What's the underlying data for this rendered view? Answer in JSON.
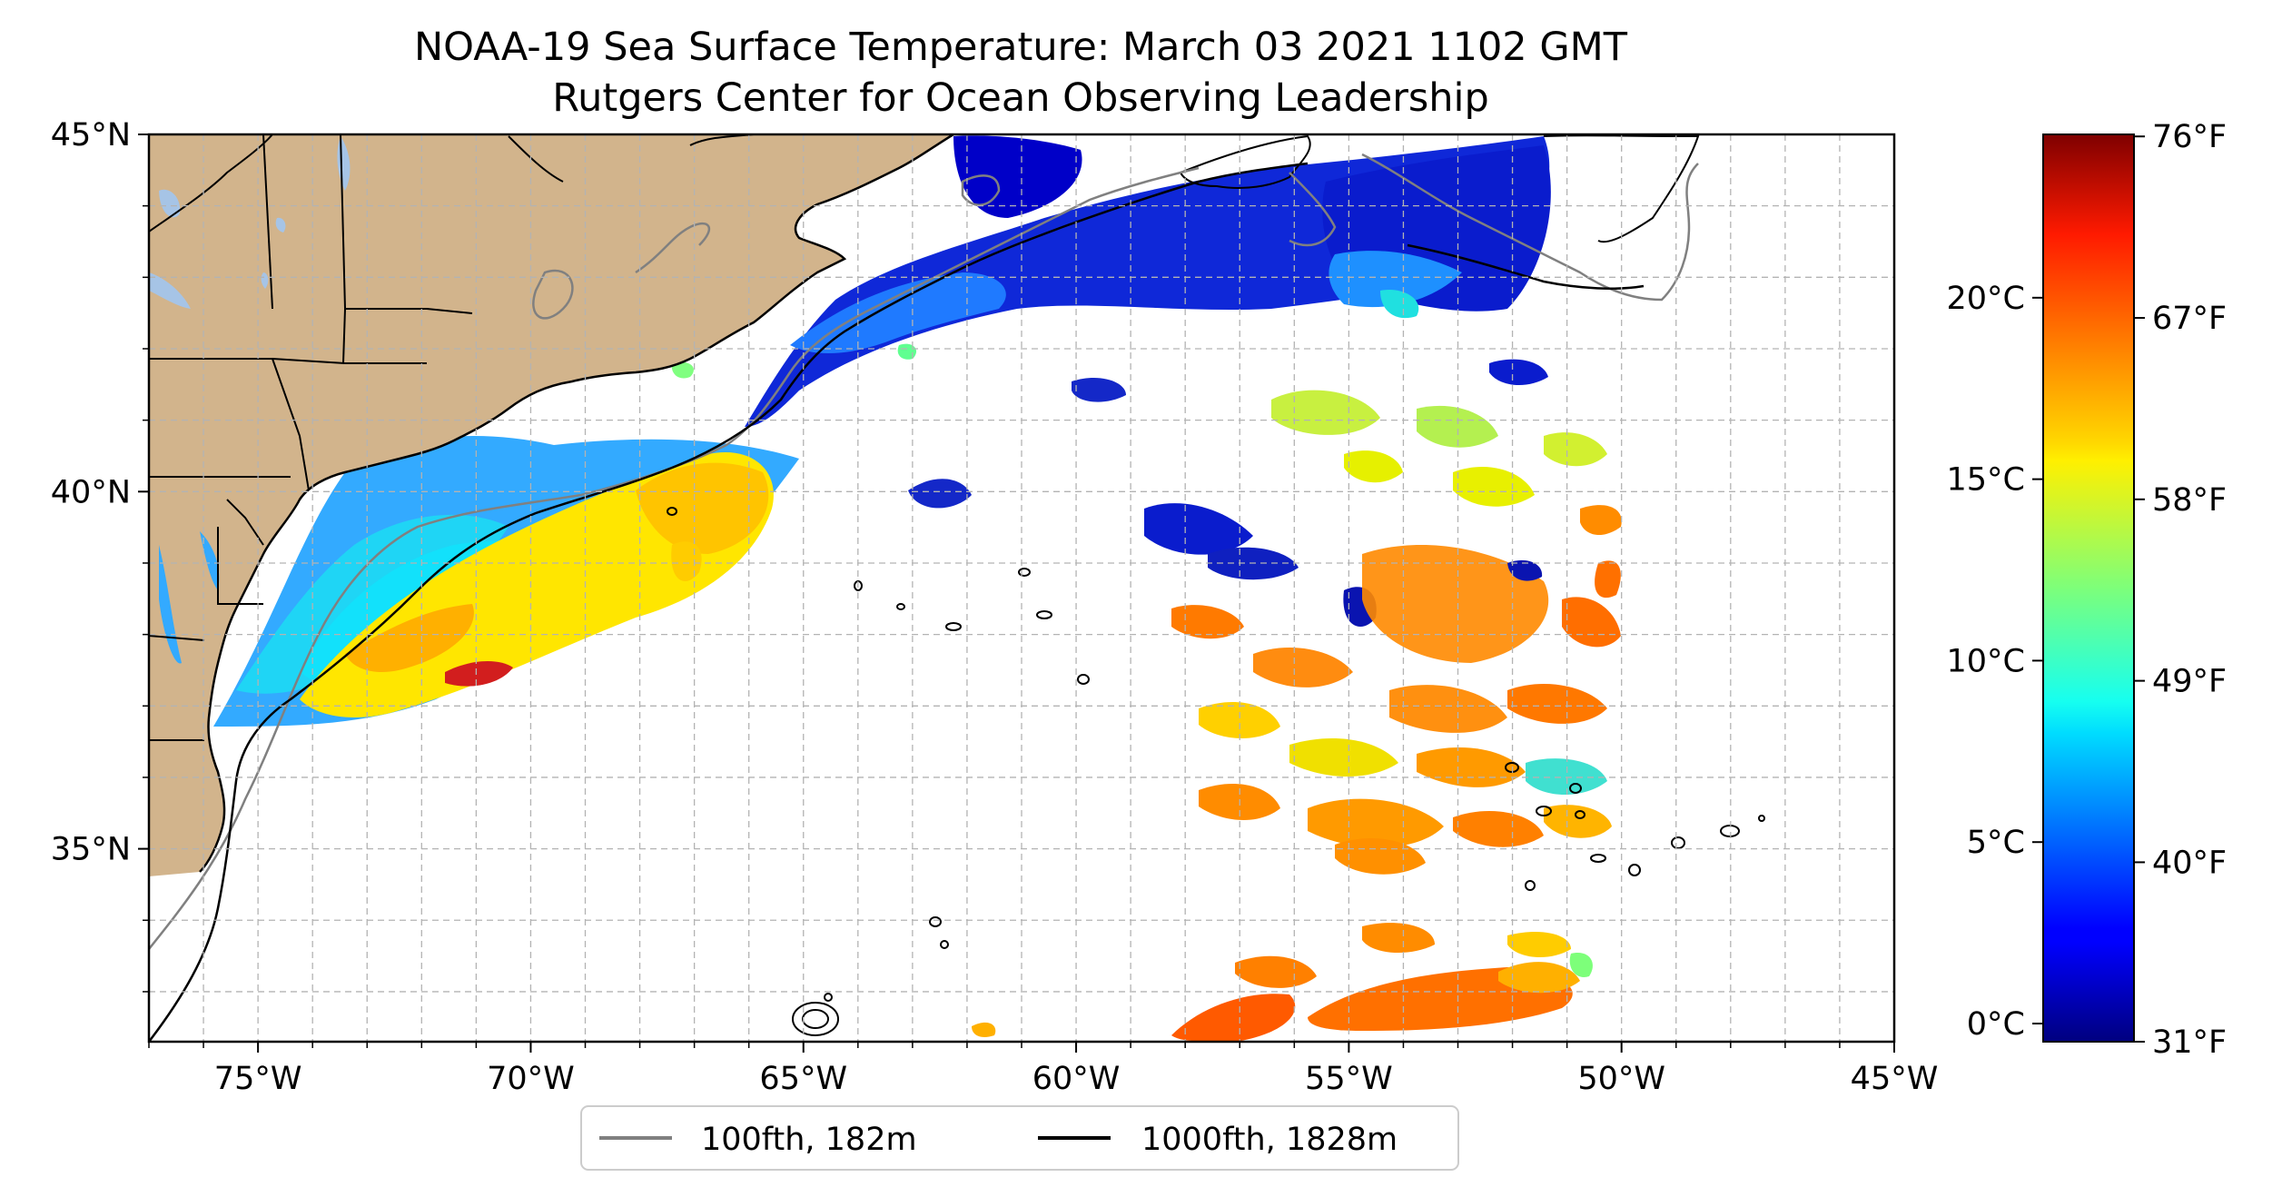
{
  "title": {
    "line1": "NOAA-19 Sea Surface Temperature: March 03 2021 1102 GMT",
    "line2": "Rutgers Center for Ocean Observing Leadership"
  },
  "map": {
    "lon_range": [
      -77,
      -45
    ],
    "lat_range": [
      32.3,
      45
    ],
    "lat_ticks": [
      {
        "value": 45,
        "label": "45°N"
      },
      {
        "value": 40,
        "label": "40°N"
      },
      {
        "value": 35,
        "label": "35°N"
      }
    ],
    "lon_ticks": [
      {
        "value": -75,
        "label": "75°W"
      },
      {
        "value": -70,
        "label": "70°W"
      },
      {
        "value": -65,
        "label": "65°W"
      },
      {
        "value": -60,
        "label": "60°W"
      },
      {
        "value": -55,
        "label": "55°W"
      },
      {
        "value": -50,
        "label": "50°W"
      },
      {
        "value": -45,
        "label": "45°W"
      }
    ],
    "gridlines": true,
    "land_color": "#d2b48c",
    "lake_color": "#a6c4e6",
    "missing_data_color": "#ffffff"
  },
  "colorbar": {
    "colormap": "jet",
    "celsius_range": [
      -0.5,
      24.5
    ],
    "celsius_ticks": [
      {
        "value": 0,
        "label": "0°C"
      },
      {
        "value": 5,
        "label": "5°C"
      },
      {
        "value": 10,
        "label": "10°C"
      },
      {
        "value": 15,
        "label": "15°C"
      },
      {
        "value": 20,
        "label": "20°C"
      }
    ],
    "fahrenheit_ticks": [
      {
        "value": 31,
        "label": "31°F"
      },
      {
        "value": 40,
        "label": "40°F"
      },
      {
        "value": 49,
        "label": "49°F"
      },
      {
        "value": 58,
        "label": "58°F"
      },
      {
        "value": 67,
        "label": "67°F"
      },
      {
        "value": 76,
        "label": "76°F"
      }
    ]
  },
  "legend": {
    "placement": "below",
    "items": [
      {
        "label": "100fth, 182m",
        "color": "#808080"
      },
      {
        "label": "1000fth, 1828m",
        "color": "#000000"
      }
    ]
  }
}
